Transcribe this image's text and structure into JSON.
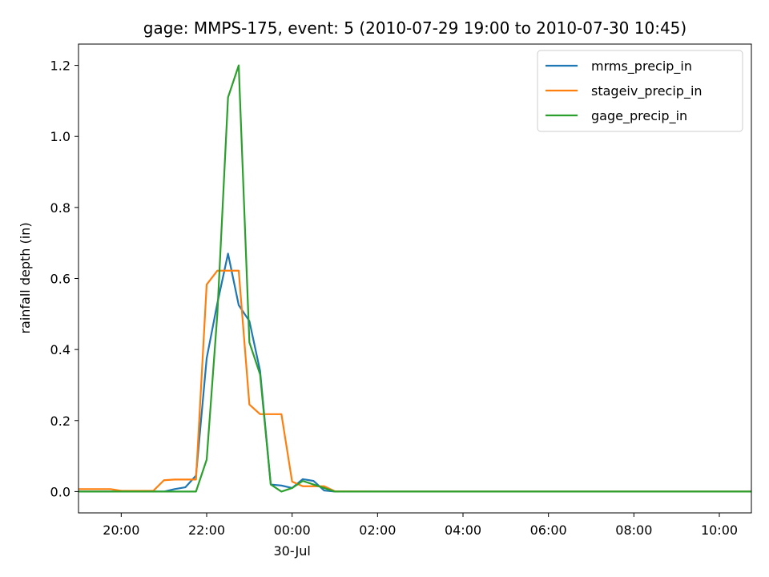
{
  "chart_data": {
    "type": "line",
    "title": "gage: MMPS-175, event: 5 (2010-07-29 19:00 to 2010-07-30 10:45)",
    "xlabel": "",
    "ylabel": "rainfall depth (in)",
    "x_range": [
      "2010-07-29 19:00",
      "2010-07-30 10:45"
    ],
    "ylim": [
      -0.06,
      1.26
    ],
    "x_ticks": [
      {
        "time": "2010-07-29 20:00",
        "label": "20:00",
        "sublabel": ""
      },
      {
        "time": "2010-07-29 22:00",
        "label": "22:00",
        "sublabel": ""
      },
      {
        "time": "2010-07-30 00:00",
        "label": "00:00",
        "sublabel": "30-Jul"
      },
      {
        "time": "2010-07-30 02:00",
        "label": "02:00",
        "sublabel": ""
      },
      {
        "time": "2010-07-30 04:00",
        "label": "04:00",
        "sublabel": ""
      },
      {
        "time": "2010-07-30 06:00",
        "label": "06:00",
        "sublabel": ""
      },
      {
        "time": "2010-07-30 08:00",
        "label": "08:00",
        "sublabel": ""
      },
      {
        "time": "2010-07-30 10:00",
        "label": "10:00",
        "sublabel": ""
      }
    ],
    "y_ticks": [
      {
        "value": 0.0,
        "label": "0.0"
      },
      {
        "value": 0.2,
        "label": "0.2"
      },
      {
        "value": 0.4,
        "label": "0.4"
      },
      {
        "value": 0.6,
        "label": "0.6"
      },
      {
        "value": 0.8,
        "label": "0.8"
      },
      {
        "value": 1.0,
        "label": "1.0"
      },
      {
        "value": 1.2,
        "label": "1.2"
      }
    ],
    "grid": false,
    "legend_position": "top-right",
    "series": [
      {
        "name": "mrms_precip_in",
        "color": "#1f77b4",
        "points": [
          [
            "2010-07-29 19:00",
            0.0
          ],
          [
            "2010-07-29 19:15",
            0.0
          ],
          [
            "2010-07-29 19:30",
            0.0
          ],
          [
            "2010-07-29 19:45",
            0.0
          ],
          [
            "2010-07-29 20:00",
            0.0
          ],
          [
            "2010-07-29 20:15",
            0.0
          ],
          [
            "2010-07-29 20:30",
            0.0
          ],
          [
            "2010-07-29 20:45",
            0.0
          ],
          [
            "2010-07-29 21:00",
            0.0
          ],
          [
            "2010-07-29 21:15",
            0.007
          ],
          [
            "2010-07-29 21:30",
            0.012
          ],
          [
            "2010-07-29 21:45",
            0.045
          ],
          [
            "2010-07-29 22:00",
            0.375
          ],
          [
            "2010-07-29 22:15",
            0.53
          ],
          [
            "2010-07-29 22:30",
            0.67
          ],
          [
            "2010-07-29 22:45",
            0.525
          ],
          [
            "2010-07-29 23:00",
            0.48
          ],
          [
            "2010-07-29 23:15",
            0.34
          ],
          [
            "2010-07-29 23:30",
            0.02
          ],
          [
            "2010-07-29 23:45",
            0.017
          ],
          [
            "2010-07-30 00:00",
            0.01
          ],
          [
            "2010-07-30 00:15",
            0.035
          ],
          [
            "2010-07-30 00:30",
            0.03
          ],
          [
            "2010-07-30 00:45",
            0.003
          ],
          [
            "2010-07-30 01:00",
            0.0
          ],
          [
            "2010-07-30 01:15",
            0.0
          ],
          [
            "2010-07-30 01:30",
            0.0
          ],
          [
            "2010-07-30 01:45",
            0.0
          ],
          [
            "2010-07-30 02:00",
            0.0
          ],
          [
            "2010-07-30 03:00",
            0.0
          ],
          [
            "2010-07-30 04:00",
            0.0
          ],
          [
            "2010-07-30 05:00",
            0.0
          ],
          [
            "2010-07-30 06:00",
            0.0
          ],
          [
            "2010-07-30 07:00",
            0.0
          ],
          [
            "2010-07-30 08:00",
            0.0
          ],
          [
            "2010-07-30 09:00",
            0.0
          ],
          [
            "2010-07-30 10:00",
            0.0
          ],
          [
            "2010-07-30 10:45",
            0.0
          ]
        ]
      },
      {
        "name": "stageiv_precip_in",
        "color": "#ff7f0e",
        "points": [
          [
            "2010-07-29 19:00",
            0.007
          ],
          [
            "2010-07-29 19:45",
            0.007
          ],
          [
            "2010-07-29 20:00",
            0.002
          ],
          [
            "2010-07-29 20:45",
            0.002
          ],
          [
            "2010-07-29 21:00",
            0.032
          ],
          [
            "2010-07-29 21:15",
            0.034
          ],
          [
            "2010-07-29 21:45",
            0.034
          ],
          [
            "2010-07-29 22:00",
            0.583
          ],
          [
            "2010-07-29 22:15",
            0.622
          ],
          [
            "2010-07-29 22:45",
            0.622
          ],
          [
            "2010-07-29 23:00",
            0.245
          ],
          [
            "2010-07-29 23:15",
            0.218
          ],
          [
            "2010-07-29 23:45",
            0.218
          ],
          [
            "2010-07-30 00:00",
            0.028
          ],
          [
            "2010-07-30 00:15",
            0.015
          ],
          [
            "2010-07-30 00:45",
            0.015
          ],
          [
            "2010-07-30 01:00",
            0.001
          ],
          [
            "2010-07-30 02:00",
            0.0
          ],
          [
            "2010-07-30 04:00",
            0.0
          ],
          [
            "2010-07-30 06:00",
            0.0
          ],
          [
            "2010-07-30 08:00",
            0.0
          ],
          [
            "2010-07-30 10:00",
            0.0
          ],
          [
            "2010-07-30 10:45",
            0.0
          ]
        ]
      },
      {
        "name": "gage_precip_in",
        "color": "#2ca02c",
        "points": [
          [
            "2010-07-29 19:00",
            0.0
          ],
          [
            "2010-07-29 19:30",
            0.0
          ],
          [
            "2010-07-29 20:00",
            0.0
          ],
          [
            "2010-07-29 20:30",
            0.0
          ],
          [
            "2010-07-29 21:00",
            0.0
          ],
          [
            "2010-07-29 21:30",
            0.0
          ],
          [
            "2010-07-29 21:45",
            0.0
          ],
          [
            "2010-07-29 22:00",
            0.09
          ],
          [
            "2010-07-29 22:15",
            0.5
          ],
          [
            "2010-07-29 22:30",
            1.11
          ],
          [
            "2010-07-29 22:45",
            1.2
          ],
          [
            "2010-07-29 23:00",
            0.42
          ],
          [
            "2010-07-29 23:15",
            0.33
          ],
          [
            "2010-07-29 23:30",
            0.02
          ],
          [
            "2010-07-29 23:45",
            0.0
          ],
          [
            "2010-07-30 00:00",
            0.01
          ],
          [
            "2010-07-30 00:15",
            0.03
          ],
          [
            "2010-07-30 00:30",
            0.02
          ],
          [
            "2010-07-30 00:45",
            0.01
          ],
          [
            "2010-07-30 01:00",
            0.0
          ],
          [
            "2010-07-30 02:00",
            0.0
          ],
          [
            "2010-07-30 04:00",
            0.0
          ],
          [
            "2010-07-30 06:00",
            0.0
          ],
          [
            "2010-07-30 08:00",
            0.0
          ],
          [
            "2010-07-30 10:00",
            0.0
          ],
          [
            "2010-07-30 10:45",
            0.0
          ]
        ]
      }
    ]
  }
}
